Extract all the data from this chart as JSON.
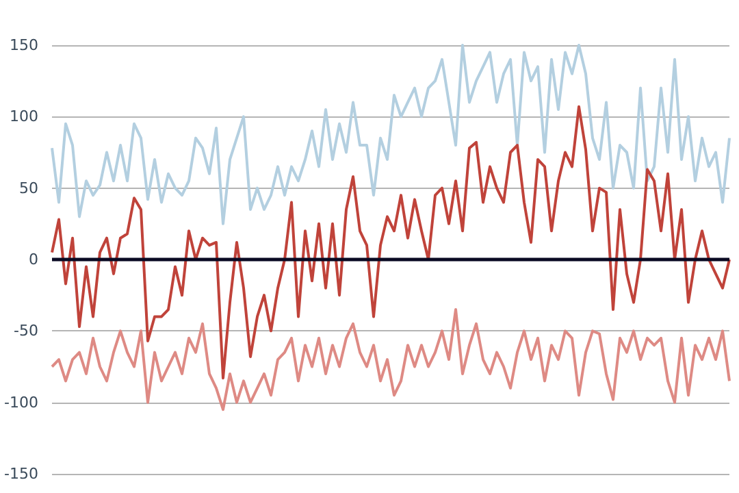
{
  "chart_data": {
    "type": "line",
    "categories": [
      null,
      null,
      null,
      null,
      null,
      null,
      null,
      null,
      null,
      null,
      null,
      null,
      null,
      null,
      null,
      null,
      null,
      null,
      null,
      null,
      null,
      null,
      null,
      null,
      null,
      null,
      null,
      null,
      null,
      null,
      null,
      null,
      null,
      null,
      null,
      null,
      null,
      null,
      null,
      null,
      null,
      null,
      null,
      null,
      null,
      null,
      null,
      null,
      null,
      null,
      null,
      null,
      null,
      null,
      null,
      null,
      null,
      null,
      null,
      null,
      null,
      null,
      null,
      null,
      null,
      null,
      null,
      null,
      null,
      null,
      null,
      null,
      null,
      null,
      null,
      null,
      null,
      null,
      null,
      null,
      null,
      null,
      null,
      null,
      null,
      null,
      null,
      null,
      null,
      null,
      null,
      null,
      null,
      null,
      null,
      null,
      null,
      null,
      null,
      null
    ],
    "series": [
      {
        "color": "#b3cfe0",
        "values": [
          78,
          40,
          95,
          80,
          30,
          55,
          45,
          52,
          75,
          55,
          80,
          55,
          95,
          85,
          42,
          70,
          40,
          60,
          50,
          45,
          55,
          85,
          78,
          60,
          92,
          25,
          70,
          85,
          100,
          35,
          50,
          35,
          45,
          65,
          45,
          65,
          55,
          70,
          90,
          65,
          105,
          70,
          95,
          75,
          110,
          80,
          80,
          45,
          85,
          70,
          115,
          100,
          110,
          120,
          100,
          120,
          125,
          140,
          110,
          80,
          150,
          110,
          125,
          135,
          145,
          110,
          130,
          140,
          80,
          145,
          125,
          135,
          75,
          140,
          105,
          145,
          130,
          150,
          130,
          85,
          70,
          110,
          50,
          80,
          75,
          50,
          120,
          55,
          65,
          120,
          75,
          140,
          70,
          100,
          55,
          85,
          65,
          75,
          40,
          85
        ]
      },
      {
        "color": "#de8a84",
        "values": [
          -75,
          -70,
          -85,
          -70,
          -65,
          -80,
          -55,
          -75,
          -85,
          -65,
          -50,
          -65,
          -75,
          -50,
          -100,
          -65,
          -85,
          -75,
          -65,
          -80,
          -55,
          -65,
          -45,
          -80,
          -90,
          -105,
          -80,
          -100,
          -85,
          -100,
          -90,
          -80,
          -95,
          -70,
          -65,
          -55,
          -85,
          -60,
          -75,
          -55,
          -80,
          -60,
          -75,
          -55,
          -45,
          -65,
          -75,
          -60,
          -85,
          -70,
          -95,
          -85,
          -60,
          -75,
          -60,
          -75,
          -65,
          -50,
          -70,
          -35,
          -80,
          -60,
          -45,
          -70,
          -80,
          -65,
          -75,
          -90,
          -65,
          -50,
          -70,
          -55,
          -85,
          -60,
          -70,
          -50,
          -55,
          -95,
          -65,
          -50,
          -52,
          -80,
          -98,
          -55,
          -65,
          -50,
          -70,
          -55,
          -60,
          -55,
          -85,
          -100,
          -55,
          -95,
          -60,
          -70,
          -55,
          -70,
          -50,
          -85
        ]
      },
      {
        "color": "#c0433a",
        "values": [
          5,
          28,
          -17,
          15,
          -47,
          -5,
          -40,
          5,
          15,
          -10,
          15,
          18,
          43,
          35,
          -57,
          -40,
          -40,
          -35,
          -5,
          -25,
          20,
          0,
          15,
          10,
          12,
          -83,
          -30,
          12,
          -20,
          -68,
          -40,
          -25,
          -50,
          -20,
          0,
          40,
          -40,
          20,
          -15,
          25,
          -20,
          25,
          -25,
          35,
          58,
          20,
          10,
          -40,
          10,
          30,
          20,
          45,
          15,
          42,
          20,
          0,
          45,
          50,
          25,
          55,
          20,
          78,
          82,
          40,
          65,
          50,
          40,
          75,
          80,
          40,
          12,
          70,
          65,
          20,
          55,
          75,
          65,
          107,
          77,
          20,
          50,
          47,
          -35,
          35,
          -10,
          -30,
          0,
          63,
          55,
          20,
          60,
          0,
          35,
          -30,
          0,
          20,
          0,
          -10,
          -20,
          0
        ]
      }
    ],
    "ylim": [
      -150,
      150
    ],
    "yticks": [
      -150,
      -100,
      -50,
      0,
      50,
      100,
      150
    ],
    "grid": "y",
    "tick_labels": "y",
    "line_style": "solid",
    "ref_lines": [
      {
        "axis": "y",
        "value": 0,
        "color": "#0a0a23"
      }
    ]
  }
}
